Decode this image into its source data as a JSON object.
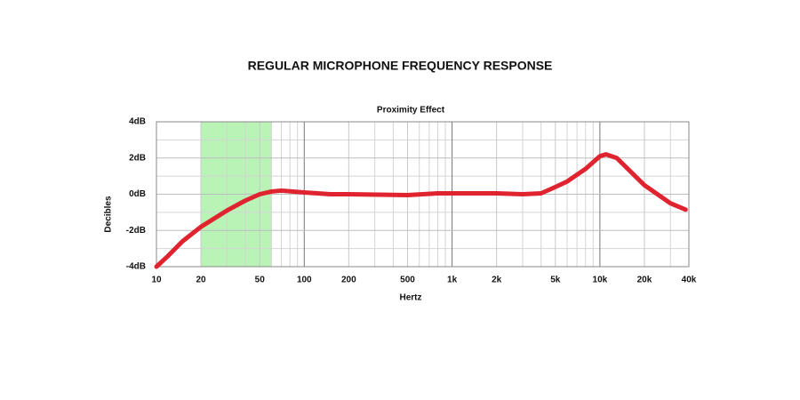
{
  "chart_data": {
    "type": "line",
    "title": "REGULAR MICROPHONE FREQUENCY RESPONSE",
    "subtitle": "Proximity Effect",
    "x_label": "Hertz",
    "y_label": "Decibles",
    "x_scale": "log",
    "grid": true,
    "xlim": [
      10,
      40000
    ],
    "ylim": [
      -4,
      4
    ],
    "xticks": [
      10,
      20,
      50,
      100,
      200,
      500,
      {
        "value": 1000,
        "label": "1k"
      },
      {
        "value": 2000,
        "label": "2k"
      },
      {
        "value": 5000,
        "label": "5k"
      },
      {
        "value": 10000,
        "label": "10k"
      },
      {
        "value": 20000,
        "label": "20k"
      },
      {
        "value": 40000,
        "label": "40k"
      }
    ],
    "xminorticks": [
      30,
      40,
      60,
      70,
      80,
      90,
      300,
      400,
      600,
      700,
      800,
      900,
      3000,
      4000,
      6000,
      7000,
      8000,
      9000,
      30000
    ],
    "yticks": [
      {
        "value": 4,
        "label": "4dB"
      },
      {
        "value": 2,
        "label": "2dB"
      },
      {
        "value": 0,
        "label": "0dB"
      },
      {
        "value": -2,
        "label": "-2dB"
      },
      {
        "value": -4,
        "label": "-4dB"
      }
    ],
    "yminorticks": [
      3,
      1,
      -1,
      -3
    ],
    "shaded_region": {
      "x": [
        20,
        60
      ],
      "color": "#b3f2ae"
    },
    "series": [
      {
        "color": "#e0242f",
        "x": [
          10,
          12,
          15,
          20,
          30,
          40,
          50,
          60,
          70,
          100,
          150,
          200,
          500,
          800,
          1000,
          2000,
          3000,
          4000,
          5000,
          6000,
          8000,
          10000,
          11000,
          13000,
          20000,
          30000,
          38000
        ],
        "values": [
          -4,
          -3.4,
          -2.6,
          -1.8,
          -0.9,
          -0.35,
          0,
          0.15,
          0.2,
          0.1,
          0,
          0,
          -0.05,
          0.05,
          0.05,
          0.05,
          0,
          0.05,
          0.4,
          0.7,
          1.4,
          2.1,
          2.2,
          2.0,
          0.5,
          -0.5,
          -0.85
        ]
      }
    ]
  }
}
